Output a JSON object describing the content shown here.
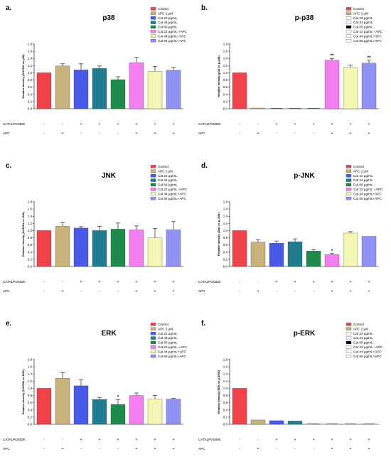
{
  "legend": [
    {
      "label": "Control",
      "color": "#f0424a"
    },
    {
      "label": "APC 2 μM",
      "color": "#c9b27c"
    },
    {
      "label": "Cat 22 μg/mL",
      "color": "#4a5ae8"
    },
    {
      "label": "Cat 44 μg/mL",
      "color": "#1f7d8f"
    },
    {
      "label": "Cat 66 μg/mL",
      "color": "#1e8a4c"
    },
    {
      "label": "Cat 22 μg/mL +APC",
      "color": "#f27ef0"
    },
    {
      "label": "Cat 44 μg/mL+APC",
      "color": "#f4f7b4"
    },
    {
      "label": "Cat 66 μg/mL+APC",
      "color": "#8f92f2"
    }
  ],
  "treatment_rows": {
    "catalposide_label": "CATALPOSIDE",
    "apc_label": "APC",
    "catalposide": [
      "-",
      "-",
      "+",
      "+",
      "+",
      "+",
      "+",
      "+"
    ],
    "apc": [
      "-",
      "+",
      "-",
      "-",
      "-",
      "+",
      "+",
      "+"
    ]
  },
  "y_ticks": [
    "0.0",
    "0.2",
    "0.4",
    "0.6",
    "0.8",
    "1.0",
    "1.2",
    "1.4",
    "1.6",
    "1.8"
  ],
  "chart_data": [
    {
      "panel": "a.",
      "type": "bar",
      "title": "p38",
      "ylabel": "Relative density (GAPDH vs p38)",
      "ylim": [
        0,
        1.8
      ],
      "values": [
        1.0,
        1.19,
        1.08,
        1.12,
        0.81,
        1.28,
        1.04,
        1.07
      ],
      "errors": [
        0,
        0.06,
        0.17,
        0.07,
        0.08,
        0.15,
        0.14,
        0.08
      ],
      "stars": [
        "",
        "",
        "",
        "",
        "",
        "",
        "",
        ""
      ],
      "legend_filled": true
    },
    {
      "panel": "b.",
      "type": "bar",
      "title": "p-p38",
      "ylabel": "Relative density (p38 vs p-p38)",
      "ylim": [
        0,
        1.8
      ],
      "values": [
        1.0,
        0.02,
        0.0,
        0.0,
        0.0,
        1.35,
        1.15,
        1.27
      ],
      "errors": [
        0,
        0,
        0,
        0,
        0,
        0.05,
        0.06,
        0.08
      ],
      "stars": [
        "",
        "",
        "",
        "",
        "",
        "**",
        "",
        "**"
      ],
      "legend_filled": false
    },
    {
      "panel": "c.",
      "type": "bar",
      "title": "JNK",
      "ylabel": "Relative density (GAPDH vs JNK)",
      "ylim": [
        0,
        1.8
      ],
      "values": [
        1.0,
        1.12,
        1.07,
        1.0,
        1.04,
        1.02,
        0.8,
        1.02
      ],
      "errors": [
        0,
        0.1,
        0.04,
        0.12,
        0.17,
        0.11,
        0.26,
        0.23
      ],
      "stars": [
        "",
        "",
        "",
        "",
        "",
        "",
        "",
        ""
      ],
      "legend_filled": true
    },
    {
      "panel": "d.",
      "type": "bar",
      "title": "p-JNK",
      "ylabel": "Relative density (JNK vs p-JNK)",
      "ylim": [
        0,
        1.8
      ],
      "values": [
        1.0,
        0.68,
        0.65,
        0.69,
        0.43,
        0.33,
        0.93,
        0.84
      ],
      "errors": [
        0,
        0.07,
        0.06,
        0.08,
        0.04,
        0.03,
        0.04,
        0
      ],
      "stars": [
        "",
        "",
        "",
        "",
        "",
        "*",
        "",
        ""
      ],
      "legend_filled": true
    },
    {
      "panel": "e.",
      "type": "bar",
      "title": "ERK",
      "ylabel": "Relative density (GAPDH vs ERK)",
      "ylim": [
        0,
        1.8
      ],
      "values": [
        1.0,
        1.28,
        1.07,
        0.69,
        0.55,
        0.8,
        0.71,
        0.7
      ],
      "errors": [
        0,
        0.16,
        0.17,
        0.06,
        0.13,
        0.07,
        0.09,
        0.02
      ],
      "stars": [
        "",
        "",
        "",
        "",
        "*",
        "",
        "",
        ""
      ],
      "legend_filled": true
    },
    {
      "panel": "f.",
      "type": "bar",
      "title": "p-ERK",
      "ylabel": "Relative density (ERK vs p-ERK)",
      "ylim": [
        0,
        1.8
      ],
      "values": [
        1.0,
        0.12,
        0.1,
        0.09,
        0.0,
        0.0,
        0.0,
        0.0
      ],
      "errors": [
        0,
        0,
        0,
        0,
        0,
        0,
        0,
        0
      ],
      "stars": [
        "",
        "",
        "",
        "",
        "",
        "",
        "",
        ""
      ],
      "legend_filled": false
    }
  ]
}
